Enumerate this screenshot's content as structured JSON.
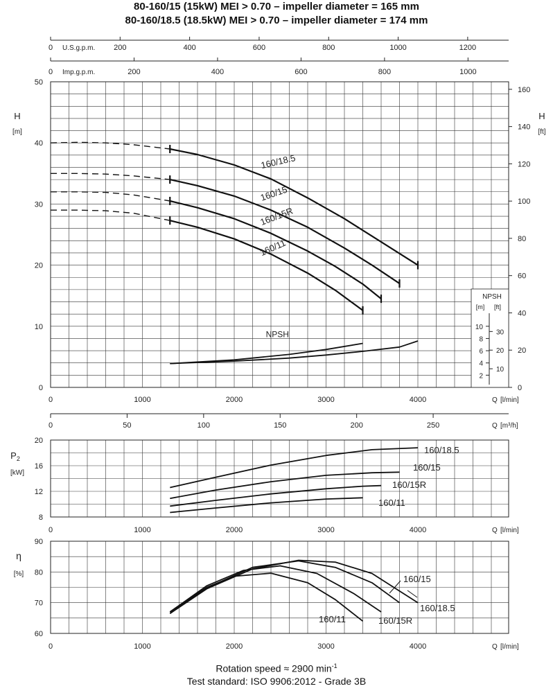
{
  "titles": {
    "line1": "80-160/15 (15kW) MEI > 0.70 – impeller diameter = 165 mm",
    "line2": "80-160/18.5 (18.5kW) MEI > 0.70 – impeller diameter = 174 mm"
  },
  "footer": {
    "speed_label": "Rotation speed ≈ 2900 min",
    "speed_sup": "-1",
    "standard": "Test standard: ISO 9906:2012 - Grade 3B"
  },
  "chart_data": [
    {
      "type": "line",
      "name": "head",
      "ylabel_left": "H",
      "ylabel_left_unit": "[m]",
      "ylabel_right": "H",
      "ylabel_right_unit": "[ft]",
      "xlabel": "Q",
      "xlabel_unit": "[l/min]",
      "xlabel_m3h": "Q",
      "xlabel_m3h_unit": "[m³/h]",
      "top_axis_us": "U.S.g.p.m.",
      "top_axis_imp": "Imp.g.p.m.",
      "xlim": [
        0,
        4000
      ],
      "ylim": [
        0,
        50
      ],
      "grid": true,
      "x_ticks_lmin": [
        "0",
        "1000",
        "2000",
        "3000",
        "4000"
      ],
      "x_ticks_m3h": [
        "0",
        "50",
        "100",
        "150",
        "200",
        "250"
      ],
      "top_ticks_us": [
        "0",
        "200",
        "400",
        "600",
        "800",
        "1000",
        "1200"
      ],
      "top_ticks_imp": [
        "0",
        "200",
        "400",
        "600",
        "800",
        "1000"
      ],
      "y_ticks_left": [
        "0",
        "10",
        "20",
        "30",
        "40",
        "50"
      ],
      "y_ticks_right": [
        "0",
        "20",
        "40",
        "60",
        "80",
        "100",
        "120",
        "140",
        "160"
      ],
      "series": [
        {
          "name": "160/18.5",
          "x": [
            1300,
            1600,
            2000,
            2400,
            2800,
            3200,
            3600,
            4000
          ],
          "y": [
            39.0,
            38.1,
            36.4,
            34.1,
            31.0,
            27.6,
            23.8,
            20.0
          ],
          "dashed_until": 1300,
          "dashed_x": [
            0,
            300,
            600,
            900,
            1300
          ],
          "dashed_y": [
            40.0,
            40.1,
            40.0,
            39.7,
            39.0
          ]
        },
        {
          "name": "160/15",
          "x": [
            1300,
            1600,
            2000,
            2400,
            2800,
            3200,
            3500,
            3800
          ],
          "y": [
            34.0,
            33.0,
            31.3,
            29.0,
            26.2,
            22.8,
            20.0,
            17.0
          ],
          "dashed_x": [
            0,
            300,
            600,
            900,
            1300
          ],
          "dashed_y": [
            35.0,
            35.0,
            34.9,
            34.6,
            34.0
          ]
        },
        {
          "name": "160/15R",
          "x": [
            1300,
            1600,
            2000,
            2400,
            2800,
            3100,
            3400,
            3600
          ],
          "y": [
            30.5,
            29.4,
            27.6,
            25.2,
            22.3,
            19.8,
            16.9,
            14.5
          ],
          "dashed_x": [
            0,
            300,
            600,
            900,
            1300
          ],
          "dashed_y": [
            32.0,
            32.0,
            31.9,
            31.5,
            30.5
          ]
        },
        {
          "name": "160/11",
          "x": [
            1300,
            1600,
            2000,
            2400,
            2800,
            3100,
            3400
          ],
          "y": [
            27.3,
            26.2,
            24.3,
            21.8,
            18.7,
            15.9,
            12.6
          ],
          "dashed_x": [
            0,
            300,
            600,
            900,
            1300
          ],
          "dashed_y": [
            29.0,
            29.0,
            28.9,
            28.5,
            27.3
          ]
        }
      ],
      "npsh": {
        "label": "NPSH",
        "inset_title": "NPSH",
        "inset_unit_m": "[m]",
        "inset_unit_ft": "[ft]",
        "inset_ticks_m": [
          "2",
          "4",
          "6",
          "8",
          "10"
        ],
        "inset_ticks_ft": [
          "10",
          "20",
          "30"
        ],
        "series": [
          {
            "x": [
              1300,
              2000,
              2600,
              3000,
              3400
            ],
            "y": [
              3.9,
              4.5,
              5.4,
              6.2,
              7.2
            ]
          },
          {
            "x": [
              1300,
              2000,
              2600,
              3000,
              3400,
              3800,
              4000
            ],
            "y": [
              3.9,
              4.3,
              4.8,
              5.3,
              5.9,
              6.6,
              7.6
            ]
          }
        ]
      }
    },
    {
      "type": "line",
      "name": "power",
      "ylabel": "P",
      "ylabel_sub": "2",
      "ylabel_unit": "[kW]",
      "xlabel": "Q",
      "xlabel_unit": "[l/min]",
      "xlim": [
        0,
        4000
      ],
      "ylim": [
        8,
        20
      ],
      "grid": true,
      "x_ticks": [
        "0",
        "1000",
        "2000",
        "3000",
        "4000"
      ],
      "y_ticks": [
        "8",
        "12",
        "16",
        "20"
      ],
      "series": [
        {
          "name": "160/18.5",
          "x": [
            1300,
            1800,
            2400,
            3000,
            3500,
            4000
          ],
          "y": [
            12.6,
            14.2,
            16.1,
            17.6,
            18.5,
            18.8
          ]
        },
        {
          "name": "160/15",
          "x": [
            1300,
            1800,
            2400,
            3000,
            3500,
            3800
          ],
          "y": [
            10.9,
            12.2,
            13.5,
            14.5,
            14.9,
            15.0
          ]
        },
        {
          "name": "160/15R",
          "x": [
            1300,
            1800,
            2400,
            3000,
            3400,
            3600
          ],
          "y": [
            9.7,
            10.6,
            11.6,
            12.4,
            12.8,
            12.9
          ]
        },
        {
          "name": "160/11",
          "x": [
            1300,
            1800,
            2400,
            3000,
            3400
          ],
          "y": [
            8.7,
            9.4,
            10.2,
            10.8,
            11.0
          ]
        }
      ]
    },
    {
      "type": "line",
      "name": "efficiency",
      "ylabel": "η",
      "ylabel_unit": "[%]",
      "xlabel": "Q",
      "xlabel_unit": "[l/min]",
      "xlim": [
        0,
        4000
      ],
      "ylim": [
        60,
        90
      ],
      "grid": true,
      "x_ticks": [
        "0",
        "1000",
        "2000",
        "3000",
        "4000"
      ],
      "y_ticks": [
        "60",
        "70",
        "80",
        "90"
      ],
      "series": [
        {
          "name": "160/18.5",
          "x": [
            1300,
            1700,
            2200,
            2700,
            3100,
            3500,
            4000
          ],
          "y": [
            66.5,
            74.5,
            81.0,
            83.8,
            83.2,
            79.5,
            70.0
          ]
        },
        {
          "name": "160/15",
          "x": [
            1300,
            1700,
            2200,
            2700,
            3100,
            3500,
            3800
          ],
          "y": [
            66.5,
            74.8,
            81.5,
            83.6,
            81.5,
            76.5,
            70.0
          ]
        },
        {
          "name": "160/15R",
          "x": [
            1300,
            1700,
            2100,
            2500,
            2900,
            3300,
            3600
          ],
          "y": [
            67.0,
            75.5,
            80.5,
            82.0,
            79.5,
            73.0,
            67.0
          ]
        },
        {
          "name": "160/11",
          "x": [
            1300,
            1700,
            2000,
            2400,
            2800,
            3100,
            3400
          ],
          "y": [
            67.0,
            75.0,
            78.6,
            79.6,
            76.5,
            71.0,
            64.0
          ]
        }
      ]
    }
  ]
}
